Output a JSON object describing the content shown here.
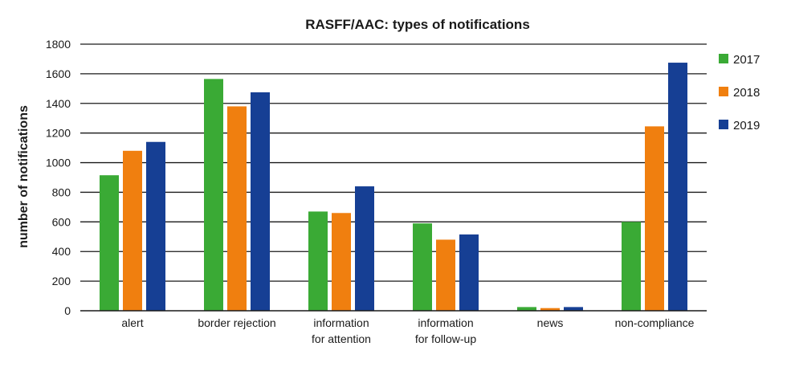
{
  "chart_data": {
    "type": "bar",
    "title": "RASFF/AAC: types of notifications",
    "xlabel": "",
    "ylabel": "number of notifications",
    "ylim": [
      0,
      1800
    ],
    "yticks": [
      0,
      200,
      400,
      600,
      800,
      1000,
      1200,
      1400,
      1600,
      1800
    ],
    "ytick_labels": [
      "0",
      "200",
      "400",
      "600",
      "800",
      "1000",
      "1200",
      "1400",
      "1600",
      "1800"
    ],
    "grid": true,
    "legend_position": "right",
    "categories": [
      [
        "alert"
      ],
      [
        "border rejection"
      ],
      [
        "information",
        "for attention"
      ],
      [
        "information",
        "for follow-up"
      ],
      [
        "news"
      ],
      [
        "non-compliance"
      ]
    ],
    "series": [
      {
        "name": "2017",
        "color": "#3aaa35",
        "values": [
          915,
          1565,
          670,
          590,
          25,
          600
        ]
      },
      {
        "name": "2018",
        "color": "#f07f0f",
        "values": [
          1080,
          1380,
          660,
          480,
          18,
          1245
        ]
      },
      {
        "name": "2019",
        "color": "#163f94",
        "values": [
          1140,
          1475,
          840,
          515,
          25,
          1675
        ]
      }
    ]
  }
}
